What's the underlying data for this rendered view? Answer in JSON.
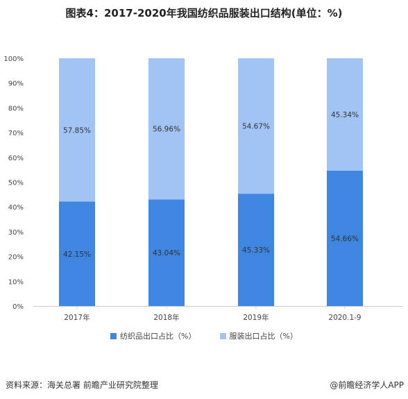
{
  "title": "图表4：2017-2020年我国纺织品服装出口结构(单位：%)",
  "source": "资料来源：海关总署 前瞻产业研究院整理",
  "brand": "@前瞻经济学人APP",
  "colors": {
    "textile": "#3f86e0",
    "apparel": "#a1c4f5",
    "axis": "#cccccc",
    "text": "#444444"
  },
  "chart_data": {
    "type": "bar",
    "stacked": true,
    "categories": [
      "2017年",
      "2018年",
      "2019年",
      "2020.1-9"
    ],
    "series": [
      {
        "name": "纺织品出口占比（%）",
        "values": [
          42.15,
          43.04,
          45.33,
          54.66
        ],
        "labels": [
          "42.15%",
          "43.04%",
          "45.33%",
          "54.66%"
        ]
      },
      {
        "name": "服装出口占比（%）",
        "values": [
          57.85,
          56.96,
          54.67,
          45.34
        ],
        "labels": [
          "57.85%",
          "56.96%",
          "54.67%",
          "45.34%"
        ]
      }
    ],
    "yticks": [
      "0%",
      "10%",
      "20%",
      "30%",
      "40%",
      "50%",
      "60%",
      "70%",
      "80%",
      "90%",
      "100%"
    ],
    "ylim": [
      0,
      100
    ],
    "grid": false,
    "legend": "bottom-center"
  }
}
